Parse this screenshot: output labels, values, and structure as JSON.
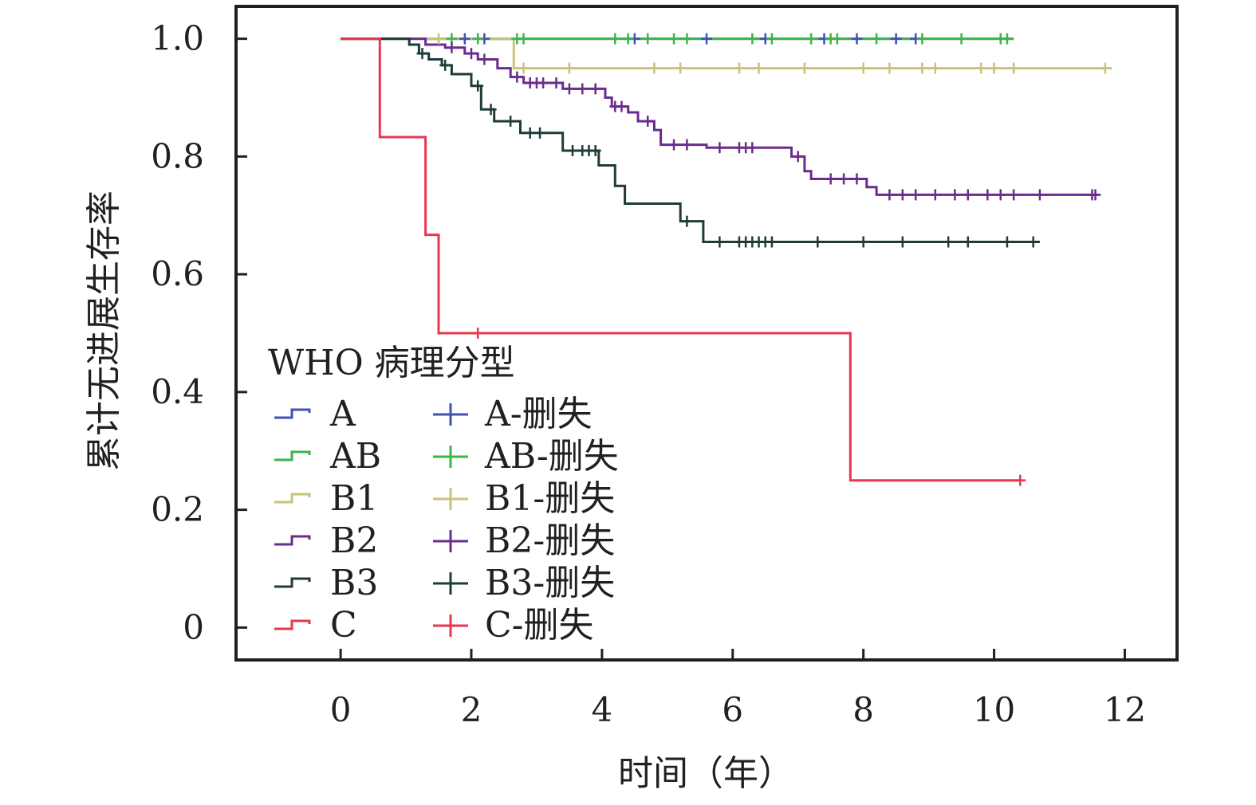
{
  "chart_data": {
    "type": "line",
    "title": "",
    "xlabel": "时间（年）",
    "ylabel": "累计无进展生存率",
    "xlim": [
      -1.6,
      12.8
    ],
    "ylim": [
      -0.055,
      1.055
    ],
    "xticks": [
      0,
      2,
      4,
      6,
      8,
      10,
      12
    ],
    "xtick_labels": [
      "0",
      "2",
      "4",
      "6",
      "8",
      "10",
      "12"
    ],
    "yticks": [
      0,
      0.2,
      0.4,
      0.6,
      0.8,
      1.0
    ],
    "ytick_labels": [
      "0",
      "0.2",
      "0.4",
      "0.6",
      "0.8",
      "1.0"
    ],
    "grid": false,
    "legend": {
      "title": "WHO 病理分型",
      "placement": "lower-left",
      "line_entries": [
        "A",
        "AB",
        "B1",
        "B2",
        "B3",
        "C"
      ],
      "censor_entries": [
        "A-删失",
        "AB-删失",
        "B1-删失",
        "B2-删失",
        "B3-删失",
        "C-删失"
      ]
    },
    "series": [
      {
        "name": "A",
        "color": "#3f51b5",
        "steps": [
          [
            0,
            1.0
          ],
          [
            10.3,
            1.0
          ]
        ],
        "censored": [
          [
            1.9,
            1.0
          ],
          [
            2.2,
            1.0
          ],
          [
            4.5,
            1.0
          ],
          [
            5.6,
            1.0
          ],
          [
            6.5,
            1.0
          ],
          [
            7.4,
            1.0
          ],
          [
            7.9,
            1.0
          ],
          [
            8.5,
            1.0
          ],
          [
            8.8,
            1.0
          ]
        ]
      },
      {
        "name": "AB",
        "color": "#3cb54a",
        "steps": [
          [
            0,
            1.0
          ],
          [
            10.3,
            1.0
          ]
        ],
        "censored": [
          [
            1.7,
            1.0
          ],
          [
            2.1,
            1.0
          ],
          [
            2.7,
            1.0
          ],
          [
            2.8,
            1.0
          ],
          [
            4.2,
            1.0
          ],
          [
            4.4,
            1.0
          ],
          [
            4.7,
            1.0
          ],
          [
            5.1,
            1.0
          ],
          [
            5.3,
            1.0
          ],
          [
            6.3,
            1.0
          ],
          [
            6.6,
            1.0
          ],
          [
            7.2,
            1.0
          ],
          [
            7.5,
            1.0
          ],
          [
            7.6,
            1.0
          ],
          [
            8.2,
            1.0
          ],
          [
            8.9,
            1.0
          ],
          [
            9.5,
            1.0
          ],
          [
            10.1,
            1.0
          ],
          [
            10.2,
            1.0
          ]
        ]
      },
      {
        "name": "B1",
        "color": "#c9c27a",
        "steps": [
          [
            0,
            1.0
          ],
          [
            2.65,
            1.0
          ],
          [
            2.65,
            0.95
          ],
          [
            11.8,
            0.95
          ]
        ],
        "censored": [
          [
            1.5,
            1.0
          ],
          [
            2.8,
            0.95
          ],
          [
            3.5,
            0.95
          ],
          [
            4.8,
            0.95
          ],
          [
            5.2,
            0.95
          ],
          [
            6.1,
            0.95
          ],
          [
            6.4,
            0.95
          ],
          [
            7.1,
            0.95
          ],
          [
            8.0,
            0.95
          ],
          [
            8.4,
            0.95
          ],
          [
            8.9,
            0.95
          ],
          [
            9.1,
            0.95
          ],
          [
            9.8,
            0.95
          ],
          [
            10.0,
            0.95
          ],
          [
            10.3,
            0.95
          ],
          [
            11.7,
            0.95
          ]
        ]
      },
      {
        "name": "B2",
        "color": "#6a2c8e",
        "steps": [
          [
            0,
            1.0
          ],
          [
            1.3,
            1.0
          ],
          [
            1.3,
            0.99
          ],
          [
            1.6,
            0.99
          ],
          [
            1.6,
            0.985
          ],
          [
            1.9,
            0.985
          ],
          [
            1.9,
            0.975
          ],
          [
            2.1,
            0.975
          ],
          [
            2.1,
            0.965
          ],
          [
            2.4,
            0.965
          ],
          [
            2.4,
            0.95
          ],
          [
            2.6,
            0.95
          ],
          [
            2.6,
            0.935
          ],
          [
            2.8,
            0.935
          ],
          [
            2.8,
            0.925
          ],
          [
            3.4,
            0.925
          ],
          [
            3.4,
            0.915
          ],
          [
            4.05,
            0.915
          ],
          [
            4.05,
            0.9
          ],
          [
            4.15,
            0.9
          ],
          [
            4.15,
            0.885
          ],
          [
            4.4,
            0.885
          ],
          [
            4.4,
            0.875
          ],
          [
            4.55,
            0.875
          ],
          [
            4.55,
            0.86
          ],
          [
            4.8,
            0.86
          ],
          [
            4.8,
            0.845
          ],
          [
            4.9,
            0.845
          ],
          [
            4.9,
            0.82
          ],
          [
            5.6,
            0.82
          ],
          [
            5.6,
            0.815
          ],
          [
            6.5,
            0.815
          ],
          [
            6.5,
            0.815
          ],
          [
            6.9,
            0.815
          ],
          [
            6.9,
            0.8
          ],
          [
            7.1,
            0.8
          ],
          [
            7.1,
            0.775
          ],
          [
            7.2,
            0.775
          ],
          [
            7.2,
            0.762
          ],
          [
            8.05,
            0.762
          ],
          [
            8.05,
            0.748
          ],
          [
            8.2,
            0.748
          ],
          [
            8.2,
            0.735
          ],
          [
            11.6,
            0.735
          ]
        ],
        "censored": [
          [
            1.7,
            0.985
          ],
          [
            2.0,
            0.975
          ],
          [
            2.2,
            0.965
          ],
          [
            2.7,
            0.935
          ],
          [
            2.9,
            0.925
          ],
          [
            3.0,
            0.925
          ],
          [
            3.1,
            0.925
          ],
          [
            3.3,
            0.925
          ],
          [
            3.5,
            0.915
          ],
          [
            3.7,
            0.915
          ],
          [
            3.9,
            0.915
          ],
          [
            4.2,
            0.885
          ],
          [
            4.3,
            0.885
          ],
          [
            4.7,
            0.86
          ],
          [
            5.1,
            0.82
          ],
          [
            5.3,
            0.82
          ],
          [
            5.8,
            0.815
          ],
          [
            6.1,
            0.815
          ],
          [
            6.2,
            0.815
          ],
          [
            6.3,
            0.815
          ],
          [
            7.0,
            0.8
          ],
          [
            7.5,
            0.762
          ],
          [
            7.7,
            0.762
          ],
          [
            7.9,
            0.762
          ],
          [
            8.4,
            0.735
          ],
          [
            8.6,
            0.735
          ],
          [
            8.8,
            0.735
          ],
          [
            9.1,
            0.735
          ],
          [
            9.4,
            0.735
          ],
          [
            9.6,
            0.735
          ],
          [
            9.9,
            0.735
          ],
          [
            10.1,
            0.735
          ],
          [
            10.3,
            0.735
          ],
          [
            10.7,
            0.735
          ],
          [
            11.5,
            0.735
          ],
          [
            11.55,
            0.735
          ]
        ]
      },
      {
        "name": "B3",
        "color": "#1f3b3a",
        "steps": [
          [
            0,
            1.0
          ],
          [
            1.05,
            1.0
          ],
          [
            1.05,
            0.99
          ],
          [
            1.2,
            0.99
          ],
          [
            1.2,
            0.975
          ],
          [
            1.35,
            0.975
          ],
          [
            1.35,
            0.965
          ],
          [
            1.55,
            0.965
          ],
          [
            1.55,
            0.955
          ],
          [
            1.7,
            0.955
          ],
          [
            1.7,
            0.94
          ],
          [
            2.0,
            0.94
          ],
          [
            2.0,
            0.92
          ],
          [
            2.15,
            0.92
          ],
          [
            2.15,
            0.88
          ],
          [
            2.35,
            0.88
          ],
          [
            2.35,
            0.86
          ],
          [
            2.75,
            0.86
          ],
          [
            2.75,
            0.84
          ],
          [
            3.4,
            0.84
          ],
          [
            3.4,
            0.81
          ],
          [
            3.95,
            0.81
          ],
          [
            3.95,
            0.785
          ],
          [
            4.2,
            0.785
          ],
          [
            4.2,
            0.75
          ],
          [
            4.35,
            0.75
          ],
          [
            4.35,
            0.72
          ],
          [
            5.2,
            0.72
          ],
          [
            5.2,
            0.69
          ],
          [
            5.55,
            0.69
          ],
          [
            5.55,
            0.655
          ],
          [
            10.7,
            0.655
          ]
        ],
        "censored": [
          [
            1.25,
            0.975
          ],
          [
            1.6,
            0.955
          ],
          [
            2.1,
            0.92
          ],
          [
            2.3,
            0.88
          ],
          [
            2.6,
            0.86
          ],
          [
            2.9,
            0.84
          ],
          [
            3.05,
            0.84
          ],
          [
            3.55,
            0.81
          ],
          [
            3.7,
            0.81
          ],
          [
            3.8,
            0.81
          ],
          [
            3.9,
            0.81
          ],
          [
            5.3,
            0.69
          ],
          [
            5.8,
            0.655
          ],
          [
            6.1,
            0.655
          ],
          [
            6.2,
            0.655
          ],
          [
            6.3,
            0.655
          ],
          [
            6.4,
            0.655
          ],
          [
            6.5,
            0.655
          ],
          [
            6.6,
            0.655
          ],
          [
            7.3,
            0.655
          ],
          [
            8.0,
            0.655
          ],
          [
            8.6,
            0.655
          ],
          [
            9.3,
            0.655
          ],
          [
            9.6,
            0.655
          ],
          [
            10.2,
            0.655
          ],
          [
            10.6,
            0.655
          ]
        ]
      },
      {
        "name": "C",
        "color": "#e8364f",
        "steps": [
          [
            0,
            1.0
          ],
          [
            0.6,
            1.0
          ],
          [
            0.6,
            0.833
          ],
          [
            1.3,
            0.833
          ],
          [
            1.3,
            0.667
          ],
          [
            1.5,
            0.667
          ],
          [
            1.5,
            0.5
          ],
          [
            7.8,
            0.5
          ],
          [
            7.8,
            0.25
          ],
          [
            10.4,
            0.25
          ]
        ],
        "censored": [
          [
            2.1,
            0.5
          ],
          [
            10.4,
            0.25
          ]
        ]
      }
    ]
  }
}
